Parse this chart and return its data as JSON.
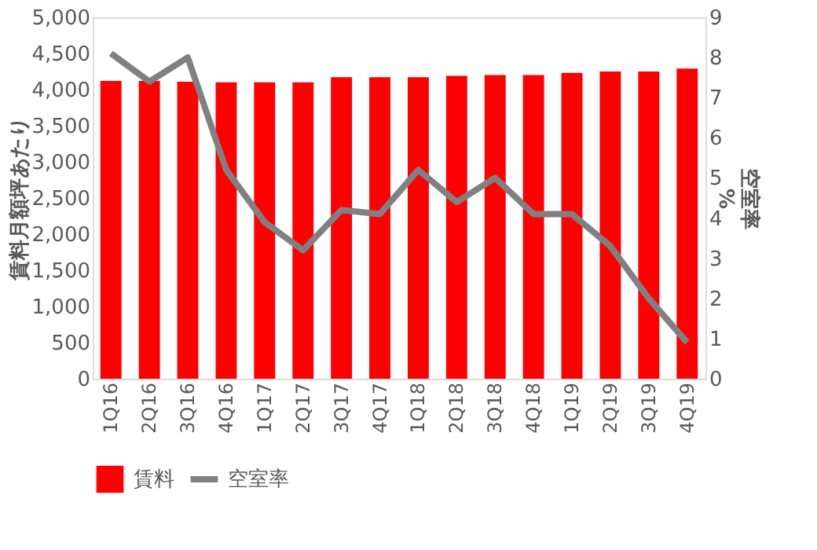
{
  "chart_data": {
    "type": "bar",
    "categories": [
      "1Q16",
      "2Q16",
      "3Q16",
      "4Q16",
      "1Q17",
      "2Q17",
      "3Q17",
      "4Q17",
      "1Q18",
      "2Q18",
      "3Q18",
      "4Q18",
      "1Q19",
      "2Q19",
      "3Q19",
      "4Q19"
    ],
    "ylabel": "賃料月額坪あたり",
    "y2label": "空室率\n%",
    "ylim": [
      0,
      5000
    ],
    "yticks": [
      {
        "value": 0,
        "label": "0"
      },
      {
        "value": 500,
        "label": "500"
      },
      {
        "value": 1000,
        "label": "1,000"
      },
      {
        "value": 1500,
        "label": "1,500"
      },
      {
        "value": 2000,
        "label": "2,000"
      },
      {
        "value": 2500,
        "label": "2,500"
      },
      {
        "value": 3000,
        "label": "3,000"
      },
      {
        "value": 3500,
        "label": "3,500"
      },
      {
        "value": 4000,
        "label": "4,000"
      },
      {
        "value": 4500,
        "label": "4,500"
      },
      {
        "value": 5000,
        "label": "5,000"
      }
    ],
    "y2lim": [
      0,
      9
    ],
    "y2ticks": [
      0,
      1,
      2,
      3,
      4,
      5,
      6,
      7,
      8,
      9
    ],
    "series": [
      {
        "name": "賃料",
        "color": "#ff0000",
        "values": [
          4120,
          4120,
          4110,
          4100,
          4100,
          4100,
          4170,
          4170,
          4170,
          4190,
          4200,
          4200,
          4230,
          4250,
          4250,
          4290
        ]
      },
      {
        "name": "空室率",
        "type": "line",
        "axis": "y2",
        "color": "#808080",
        "values": [
          8.1,
          7.4,
          8.0,
          5.2,
          3.9,
          3.2,
          4.2,
          4.1,
          5.2,
          4.4,
          5.0,
          4.1,
          4.1,
          3.3,
          2.0,
          0.9
        ]
      }
    ],
    "grid": false,
    "legend": "bottom"
  }
}
